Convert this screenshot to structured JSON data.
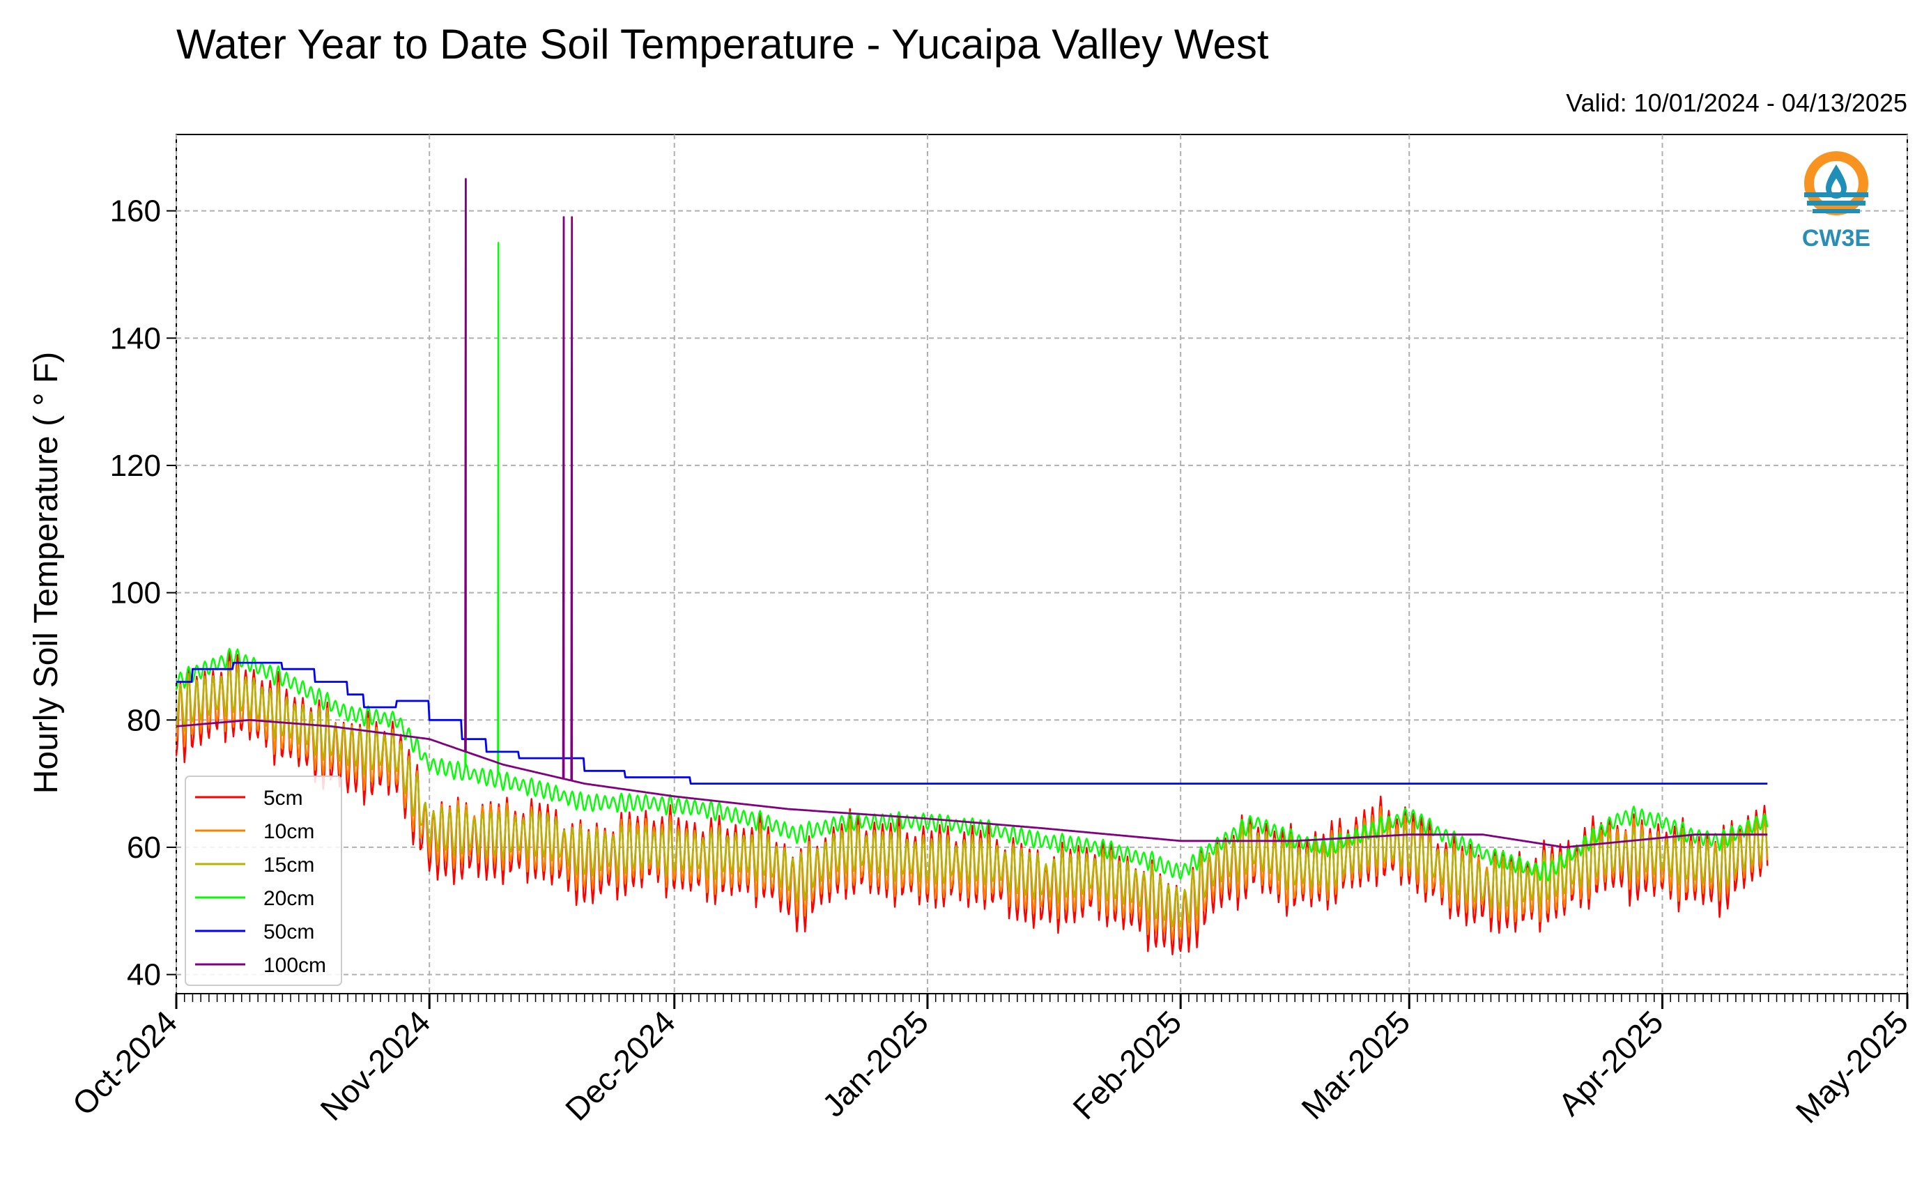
{
  "chart_data": {
    "type": "line",
    "title": "Water Year to Date Soil Temperature - Yucaipa Valley West",
    "subtitle": "Valid: 10/01/2024 - 04/13/2025",
    "ylabel": "Hourly Soil Temperature ( ° F)",
    "xlabel": "",
    "ylim": [
      37,
      172
    ],
    "yticks": [
      40,
      60,
      80,
      100,
      120,
      140,
      160
    ],
    "xlim": [
      "2024-10-01",
      "2025-05-01"
    ],
    "xtick_dates": [
      "2024-10-01",
      "2024-11-01",
      "2024-12-01",
      "2025-01-01",
      "2025-02-01",
      "2025-03-01",
      "2025-04-01",
      "2025-05-01"
    ],
    "xtick_labels": [
      "Oct-2024",
      "Nov-2024",
      "Dec-2024",
      "Jan-2025",
      "Feb-2025",
      "Mar-2025",
      "Apr-2025",
      "May-2025"
    ],
    "grid": true,
    "legend_position": "lower-left",
    "logo_text": "CW3E",
    "series": [
      {
        "name": "5cm",
        "color": "#ff0000",
        "style": "diurnal",
        "base": [
          [
            "2024-10-01",
            80
          ],
          [
            "2024-10-08",
            84
          ],
          [
            "2024-10-15",
            79
          ],
          [
            "2024-10-22",
            74
          ],
          [
            "2024-10-28",
            74
          ],
          [
            "2024-11-01",
            61
          ],
          [
            "2024-11-08",
            61
          ],
          [
            "2024-11-15",
            61
          ],
          [
            "2024-11-20",
            57
          ],
          [
            "2024-11-28",
            60
          ],
          [
            "2024-12-05",
            58
          ],
          [
            "2024-12-12",
            58
          ],
          [
            "2024-12-16",
            53
          ],
          [
            "2024-12-22",
            59
          ],
          [
            "2025-01-01",
            57
          ],
          [
            "2025-01-08",
            57
          ],
          [
            "2025-01-15",
            53
          ],
          [
            "2025-01-22",
            55
          ],
          [
            "2025-01-28",
            51
          ],
          [
            "2025-02-01",
            48
          ],
          [
            "2025-02-05",
            55
          ],
          [
            "2025-02-10",
            59
          ],
          [
            "2025-02-15",
            56
          ],
          [
            "2025-02-19",
            57
          ],
          [
            "2025-02-25",
            61
          ],
          [
            "2025-03-01",
            60
          ],
          [
            "2025-03-05",
            56
          ],
          [
            "2025-03-10",
            53
          ],
          [
            "2025-03-15",
            53
          ],
          [
            "2025-03-20",
            55
          ],
          [
            "2025-03-25",
            59
          ],
          [
            "2025-03-28",
            58
          ],
          [
            "2025-04-01",
            58
          ],
          [
            "2025-04-04",
            57
          ],
          [
            "2025-04-08",
            56
          ],
          [
            "2025-04-13",
            61
          ]
        ],
        "amp": 7.5,
        "spikes": []
      },
      {
        "name": "10cm",
        "color": "#ff8000",
        "style": "diurnal",
        "base": [
          [
            "2024-10-01",
            81
          ],
          [
            "2024-10-08",
            84
          ],
          [
            "2024-10-15",
            79
          ],
          [
            "2024-10-22",
            75
          ],
          [
            "2024-10-28",
            74
          ],
          [
            "2024-11-01",
            62
          ],
          [
            "2024-11-08",
            62
          ],
          [
            "2024-11-15",
            61
          ],
          [
            "2024-11-20",
            58
          ],
          [
            "2024-11-28",
            60
          ],
          [
            "2024-12-05",
            58
          ],
          [
            "2024-12-12",
            58
          ],
          [
            "2024-12-16",
            54
          ],
          [
            "2024-12-22",
            59
          ],
          [
            "2025-01-01",
            57
          ],
          [
            "2025-01-08",
            57
          ],
          [
            "2025-01-15",
            54
          ],
          [
            "2025-01-22",
            55
          ],
          [
            "2025-01-28",
            52
          ],
          [
            "2025-02-01",
            49
          ],
          [
            "2025-02-05",
            56
          ],
          [
            "2025-02-10",
            59
          ],
          [
            "2025-02-15",
            56
          ],
          [
            "2025-02-19",
            57
          ],
          [
            "2025-02-25",
            61
          ],
          [
            "2025-03-01",
            60
          ],
          [
            "2025-03-05",
            56
          ],
          [
            "2025-03-10",
            54
          ],
          [
            "2025-03-15",
            53
          ],
          [
            "2025-03-20",
            55
          ],
          [
            "2025-03-25",
            59
          ],
          [
            "2025-03-28",
            59
          ],
          [
            "2025-04-01",
            58
          ],
          [
            "2025-04-04",
            57
          ],
          [
            "2025-04-08",
            57
          ],
          [
            "2025-04-13",
            61
          ]
        ],
        "amp": 5.8,
        "spikes": []
      },
      {
        "name": "15cm",
        "color": "#b4b400",
        "style": "diurnal",
        "base": [
          [
            "2024-10-01",
            82
          ],
          [
            "2024-10-08",
            85
          ],
          [
            "2024-10-15",
            80
          ],
          [
            "2024-10-22",
            76
          ],
          [
            "2024-10-28",
            75
          ],
          [
            "2024-11-01",
            63
          ],
          [
            "2024-11-08",
            62
          ],
          [
            "2024-11-15",
            62
          ],
          [
            "2024-11-20",
            59
          ],
          [
            "2024-11-28",
            60
          ],
          [
            "2024-12-05",
            59
          ],
          [
            "2024-12-12",
            59
          ],
          [
            "2024-12-16",
            55
          ],
          [
            "2024-12-22",
            60
          ],
          [
            "2025-01-01",
            58
          ],
          [
            "2025-01-08",
            58
          ],
          [
            "2025-01-15",
            55
          ],
          [
            "2025-01-22",
            56
          ],
          [
            "2025-01-28",
            53
          ],
          [
            "2025-02-01",
            50
          ],
          [
            "2025-02-05",
            57
          ],
          [
            "2025-02-10",
            60
          ],
          [
            "2025-02-15",
            57
          ],
          [
            "2025-02-19",
            57
          ],
          [
            "2025-02-25",
            61
          ],
          [
            "2025-03-01",
            60
          ],
          [
            "2025-03-05",
            57
          ],
          [
            "2025-03-10",
            54
          ],
          [
            "2025-03-15",
            54
          ],
          [
            "2025-03-20",
            56
          ],
          [
            "2025-03-25",
            59
          ],
          [
            "2025-03-28",
            59
          ],
          [
            "2025-04-01",
            59
          ],
          [
            "2025-04-04",
            58
          ],
          [
            "2025-04-08",
            57
          ],
          [
            "2025-04-13",
            61
          ]
        ],
        "amp": 4.3,
        "spikes": []
      },
      {
        "name": "20cm",
        "color": "#00ff00",
        "style": "diurnal",
        "base": [
          [
            "2024-10-01",
            86
          ],
          [
            "2024-10-08",
            90
          ],
          [
            "2024-10-15",
            86
          ],
          [
            "2024-10-22",
            81
          ],
          [
            "2024-10-28",
            80
          ],
          [
            "2024-11-01",
            73
          ],
          [
            "2024-11-08",
            71
          ],
          [
            "2024-11-15",
            69
          ],
          [
            "2024-11-20",
            67
          ],
          [
            "2024-11-28",
            67
          ],
          [
            "2024-12-05",
            66
          ],
          [
            "2024-12-12",
            64
          ],
          [
            "2024-12-16",
            62
          ],
          [
            "2024-12-22",
            64
          ],
          [
            "2025-01-01",
            64
          ],
          [
            "2025-01-08",
            63
          ],
          [
            "2025-01-15",
            61
          ],
          [
            "2025-01-22",
            60
          ],
          [
            "2025-01-28",
            58
          ],
          [
            "2025-02-01",
            56
          ],
          [
            "2025-02-05",
            60
          ],
          [
            "2025-02-10",
            64
          ],
          [
            "2025-02-15",
            61
          ],
          [
            "2025-02-19",
            60
          ],
          [
            "2025-02-25",
            63
          ],
          [
            "2025-03-01",
            65
          ],
          [
            "2025-03-05",
            62
          ],
          [
            "2025-03-10",
            59
          ],
          [
            "2025-03-15",
            57
          ],
          [
            "2025-03-18",
            56
          ],
          [
            "2025-03-22",
            60
          ],
          [
            "2025-03-26",
            64
          ],
          [
            "2025-03-28",
            65
          ],
          [
            "2025-04-01",
            64
          ],
          [
            "2025-04-04",
            62
          ],
          [
            "2025-04-08",
            61
          ],
          [
            "2025-04-13",
            64
          ]
        ],
        "amp": 1.6,
        "spikes": [
          [
            "2024-11-05",
            162
          ],
          [
            "2024-11-09",
            155
          ]
        ]
      },
      {
        "name": "50cm",
        "color": "#0000ff",
        "style": "step",
        "base": [
          [
            "2024-10-01",
            86
          ],
          [
            "2024-10-03",
            88
          ],
          [
            "2024-10-08",
            89
          ],
          [
            "2024-10-14",
            88
          ],
          [
            "2024-10-18",
            86
          ],
          [
            "2024-10-22",
            84
          ],
          [
            "2024-10-24",
            82
          ],
          [
            "2024-10-28",
            83
          ],
          [
            "2024-11-01",
            80
          ],
          [
            "2024-11-05",
            77
          ],
          [
            "2024-11-08",
            75
          ],
          [
            "2024-11-12",
            74
          ],
          [
            "2024-11-16",
            74
          ],
          [
            "2024-11-20",
            72
          ],
          [
            "2024-11-25",
            71
          ],
          [
            "2024-12-01",
            71
          ],
          [
            "2024-12-03",
            70
          ],
          [
            "2025-04-13",
            70
          ]
        ],
        "amp": 0,
        "spikes": []
      },
      {
        "name": "100cm",
        "color": "#800080",
        "style": "smooth",
        "base": [
          [
            "2024-10-01",
            79
          ],
          [
            "2024-10-10",
            80
          ],
          [
            "2024-10-20",
            79
          ],
          [
            "2024-11-01",
            77
          ],
          [
            "2024-11-10",
            73
          ],
          [
            "2024-11-20",
            70
          ],
          [
            "2024-12-01",
            68
          ],
          [
            "2024-12-15",
            66
          ],
          [
            "2025-01-01",
            64.5
          ],
          [
            "2025-01-15",
            63
          ],
          [
            "2025-02-01",
            61
          ],
          [
            "2025-02-15",
            61
          ],
          [
            "2025-03-01",
            62
          ],
          [
            "2025-03-10",
            62
          ],
          [
            "2025-03-20",
            60
          ],
          [
            "2025-03-28",
            61
          ],
          [
            "2025-04-05",
            62
          ],
          [
            "2025-04-13",
            62
          ]
        ],
        "amp": 0,
        "spikes": [
          [
            "2024-11-05",
            165
          ],
          [
            "2024-11-17",
            159
          ],
          [
            "2024-11-18",
            159
          ]
        ]
      }
    ]
  }
}
